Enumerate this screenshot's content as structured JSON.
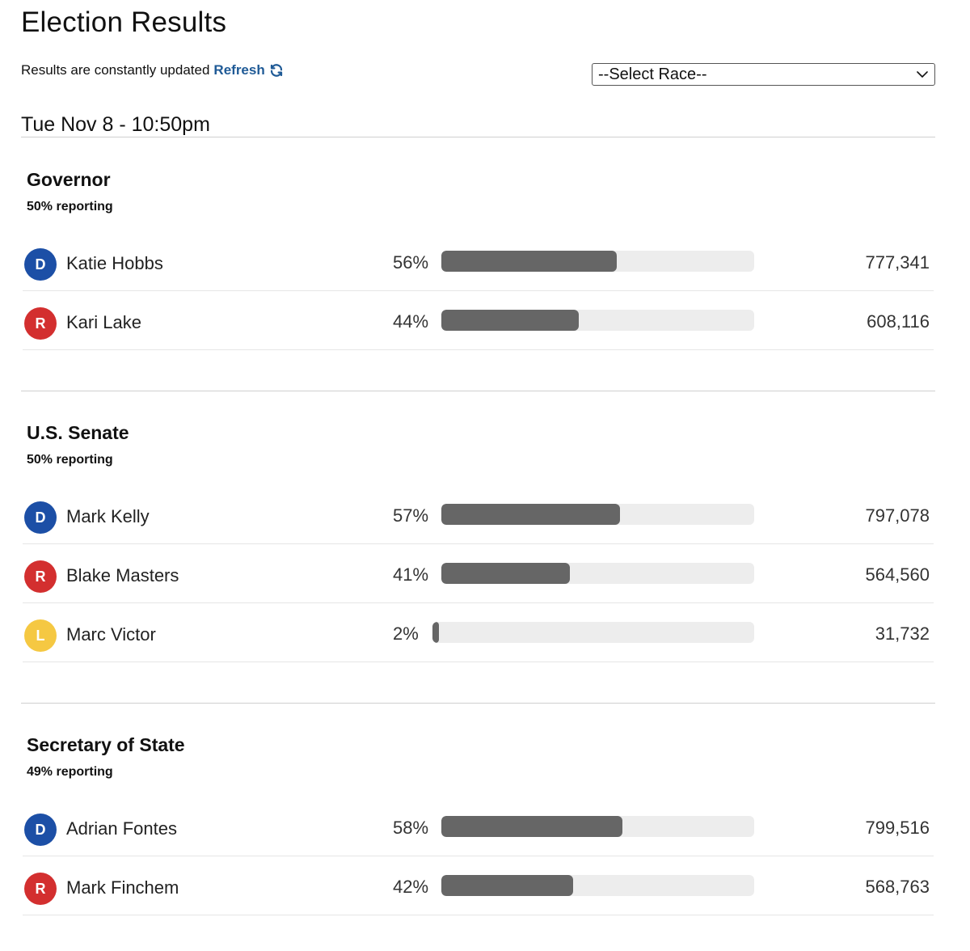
{
  "page": {
    "title": "Election Results"
  },
  "update": {
    "text": "Results are constantly updated",
    "refresh_label": "Refresh",
    "refresh_icon": "refresh-icon"
  },
  "race_select": {
    "selected": "--Select Race--",
    "icon": "chevron-down-icon"
  },
  "timestamp": "Tue Nov 8 - 10:50pm",
  "colors": {
    "D": "#1c4fa6",
    "R": "#d32f2f",
    "L": "#f5c842",
    "bar_fill": "#666666",
    "bar_track": "#ededed",
    "refresh_link": "#1f5a96"
  },
  "races": [
    {
      "name": "Governor",
      "reporting": "50% reporting",
      "candidates": [
        {
          "party": "D",
          "name": "Katie Hobbs",
          "pct_label": "56%",
          "pct": 56,
          "votes": "777,341"
        },
        {
          "party": "R",
          "name": "Kari Lake",
          "pct_label": "44%",
          "pct": 44,
          "votes": "608,116"
        }
      ]
    },
    {
      "name": "U.S. Senate",
      "reporting": "50% reporting",
      "candidates": [
        {
          "party": "D",
          "name": "Mark Kelly",
          "pct_label": "57%",
          "pct": 57,
          "votes": "797,078"
        },
        {
          "party": "R",
          "name": "Blake Masters",
          "pct_label": "41%",
          "pct": 41,
          "votes": "564,560"
        },
        {
          "party": "L",
          "name": "Marc Victor",
          "pct_label": "2%",
          "pct": 2,
          "votes": "31,732"
        }
      ]
    },
    {
      "name": "Secretary of State",
      "reporting": "49% reporting",
      "candidates": [
        {
          "party": "D",
          "name": "Adrian Fontes",
          "pct_label": "58%",
          "pct": 58,
          "votes": "799,516"
        },
        {
          "party": "R",
          "name": "Mark Finchem",
          "pct_label": "42%",
          "pct": 42,
          "votes": "568,763"
        }
      ]
    }
  ]
}
